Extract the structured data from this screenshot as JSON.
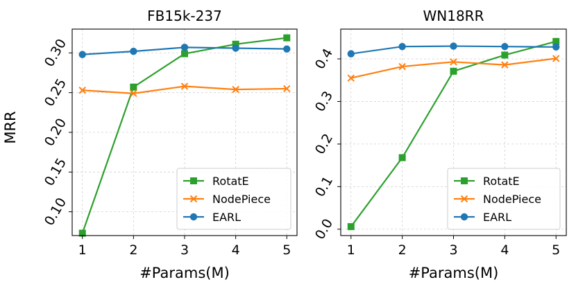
{
  "chart_data": [
    {
      "type": "line",
      "title": "FB15k-237",
      "xlabel": "#Params(M)",
      "ylabel": "MRR",
      "x": [
        1,
        2,
        3,
        4,
        5
      ],
      "xlim": [
        0.8,
        5.2
      ],
      "ylim": [
        0.07,
        0.33
      ],
      "xticks": [
        "1",
        "2",
        "3",
        "4",
        "5"
      ],
      "yticks": [
        "0.10",
        "0.15",
        "0.20",
        "0.25",
        "0.30"
      ],
      "ytick_values": [
        0.1,
        0.15,
        0.2,
        0.25,
        0.3
      ],
      "grid": true,
      "legend": "bottom-right",
      "series": [
        {
          "name": "RotatE",
          "color": "#2ca02c",
          "marker": "square",
          "values": [
            0.073,
            0.257,
            0.299,
            0.311,
            0.319
          ]
        },
        {
          "name": "NodePiece",
          "color": "#ff7f0e",
          "marker": "x",
          "values": [
            0.253,
            0.249,
            0.258,
            0.254,
            0.255
          ]
        },
        {
          "name": "EARL",
          "color": "#1f77b4",
          "marker": "circle",
          "values": [
            0.298,
            0.302,
            0.307,
            0.306,
            0.305
          ]
        }
      ]
    },
    {
      "type": "line",
      "title": "WN18RR",
      "xlabel": "#Params(M)",
      "ylabel": "",
      "x": [
        1,
        2,
        3,
        4,
        5
      ],
      "xlim": [
        0.8,
        5.2
      ],
      "ylim": [
        -0.015,
        0.47
      ],
      "xticks": [
        "1",
        "2",
        "3",
        "4",
        "5"
      ],
      "yticks": [
        "0.0",
        "0.1",
        "0.2",
        "0.3",
        "0.4"
      ],
      "ytick_values": [
        0.0,
        0.1,
        0.2,
        0.3,
        0.4
      ],
      "grid": true,
      "legend": "bottom-right",
      "series": [
        {
          "name": "RotatE",
          "color": "#2ca02c",
          "marker": "square",
          "values": [
            0.006,
            0.168,
            0.371,
            0.409,
            0.441
          ]
        },
        {
          "name": "NodePiece",
          "color": "#ff7f0e",
          "marker": "x",
          "values": [
            0.355,
            0.382,
            0.393,
            0.386,
            0.401
          ]
        },
        {
          "name": "EARL",
          "color": "#1f77b4",
          "marker": "circle",
          "values": [
            0.412,
            0.429,
            0.43,
            0.429,
            0.428
          ]
        }
      ]
    }
  ]
}
